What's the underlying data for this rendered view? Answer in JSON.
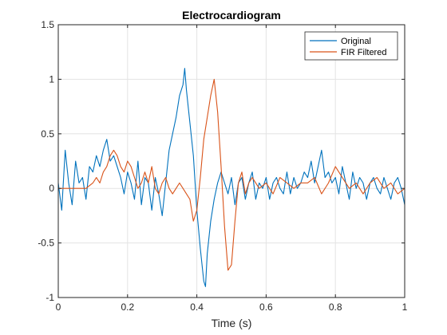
{
  "chart_data": {
    "type": "line",
    "title": "Electrocardiogram",
    "xlabel": "Time (s)",
    "ylabel": "",
    "xlim": [
      0,
      1
    ],
    "ylim": [
      -1,
      1.5
    ],
    "xticks": [
      0,
      0.2,
      0.4,
      0.6,
      0.8,
      1
    ],
    "xtick_labels": [
      "0",
      "0.2",
      "0.4",
      "0.6",
      "0.8",
      "1"
    ],
    "yticks": [
      -1,
      -0.5,
      0,
      0.5,
      1,
      1.5
    ],
    "ytick_labels": [
      "-1",
      "-0.5",
      "0",
      "0.5",
      "1",
      "1.5"
    ],
    "grid": true,
    "legend_position": "top-right",
    "series": [
      {
        "name": "Original",
        "color": "#0072BD",
        "x": [
          0,
          0.01,
          0.02,
          0.03,
          0.04,
          0.05,
          0.06,
          0.07,
          0.08,
          0.09,
          0.1,
          0.11,
          0.12,
          0.13,
          0.14,
          0.15,
          0.16,
          0.17,
          0.18,
          0.19,
          0.2,
          0.21,
          0.22,
          0.23,
          0.24,
          0.25,
          0.26,
          0.27,
          0.28,
          0.29,
          0.3,
          0.31,
          0.32,
          0.33,
          0.34,
          0.35,
          0.36,
          0.365,
          0.37,
          0.38,
          0.39,
          0.4,
          0.41,
          0.42,
          0.425,
          0.43,
          0.44,
          0.45,
          0.46,
          0.47,
          0.48,
          0.49,
          0.5,
          0.51,
          0.52,
          0.53,
          0.54,
          0.55,
          0.56,
          0.57,
          0.58,
          0.59,
          0.6,
          0.61,
          0.62,
          0.63,
          0.64,
          0.65,
          0.66,
          0.67,
          0.68,
          0.69,
          0.7,
          0.71,
          0.72,
          0.73,
          0.74,
          0.75,
          0.76,
          0.77,
          0.78,
          0.79,
          0.8,
          0.81,
          0.82,
          0.83,
          0.84,
          0.85,
          0.86,
          0.87,
          0.88,
          0.89,
          0.9,
          0.91,
          0.92,
          0.93,
          0.94,
          0.95,
          0.96,
          0.97,
          0.98,
          0.99,
          1
        ],
        "y": [
          0.05,
          -0.2,
          0.35,
          0.05,
          -0.15,
          0.25,
          0.05,
          0.1,
          -0.1,
          0.2,
          0.15,
          0.3,
          0.2,
          0.35,
          0.45,
          0.25,
          0.3,
          0.2,
          0.1,
          -0.05,
          0.15,
          0.05,
          -0.1,
          0.25,
          -0.15,
          0.1,
          0.05,
          -0.2,
          0.1,
          -0.05,
          -0.25,
          0.05,
          0.35,
          0.5,
          0.65,
          0.85,
          0.95,
          1.1,
          0.9,
          0.6,
          0.3,
          -0.2,
          -0.55,
          -0.85,
          -0.9,
          -0.6,
          -0.3,
          -0.1,
          0.05,
          0.15,
          0.05,
          -0.05,
          0.1,
          -0.15,
          0.05,
          0.1,
          -0.1,
          0.05,
          0.15,
          -0.1,
          0.05,
          0,
          0.1,
          -0.1,
          0.05,
          0.1,
          0,
          -0.05,
          0.15,
          -0.05,
          0.1,
          0,
          0.05,
          0.15,
          0.1,
          0.25,
          0.05,
          0.2,
          0.35,
          0.1,
          0.15,
          0.05,
          0.1,
          -0.05,
          0.2,
          0.05,
          -0.1,
          0.15,
          0,
          0.1,
          0.05,
          -0.1,
          0.05,
          0.1,
          0,
          -0.05,
          0.1,
          0,
          -0.1,
          0.05,
          0.1,
          0,
          -0.15
        ]
      },
      {
        "name": "FIR Filtered",
        "color": "#D95319",
        "x": [
          0,
          0.02,
          0.04,
          0.06,
          0.08,
          0.1,
          0.11,
          0.12,
          0.13,
          0.14,
          0.15,
          0.16,
          0.17,
          0.18,
          0.19,
          0.2,
          0.21,
          0.22,
          0.23,
          0.24,
          0.25,
          0.26,
          0.27,
          0.28,
          0.29,
          0.3,
          0.31,
          0.32,
          0.33,
          0.34,
          0.35,
          0.36,
          0.37,
          0.38,
          0.39,
          0.4,
          0.41,
          0.42,
          0.43,
          0.44,
          0.45,
          0.46,
          0.47,
          0.48,
          0.49,
          0.5,
          0.51,
          0.52,
          0.53,
          0.54,
          0.55,
          0.56,
          0.58,
          0.6,
          0.62,
          0.64,
          0.66,
          0.68,
          0.7,
          0.72,
          0.74,
          0.76,
          0.78,
          0.8,
          0.82,
          0.84,
          0.86,
          0.88,
          0.9,
          0.92,
          0.94,
          0.96,
          0.98,
          1
        ],
        "y": [
          0,
          0,
          0,
          0,
          0,
          0.05,
          0.1,
          0.05,
          0.15,
          0.2,
          0.3,
          0.35,
          0.3,
          0.2,
          0.15,
          0.25,
          0.2,
          0.1,
          0,
          0.05,
          0.15,
          0.05,
          0.2,
          0,
          -0.05,
          0.05,
          0.1,
          0,
          -0.05,
          0,
          0.05,
          0,
          -0.05,
          -0.1,
          -0.3,
          -0.2,
          0.1,
          0.45,
          0.65,
          0.85,
          1.0,
          0.7,
          0.2,
          -0.35,
          -0.75,
          -0.7,
          -0.3,
          0.05,
          0.15,
          -0.05,
          0.05,
          0.1,
          0,
          0.05,
          -0.05,
          0.1,
          0.05,
          0,
          0.05,
          0.05,
          0.1,
          -0.05,
          0.05,
          0.2,
          0.1,
          0,
          0.05,
          -0.05,
          0.05,
          0.1,
          0,
          0.05,
          -0.05,
          0
        ]
      }
    ]
  }
}
